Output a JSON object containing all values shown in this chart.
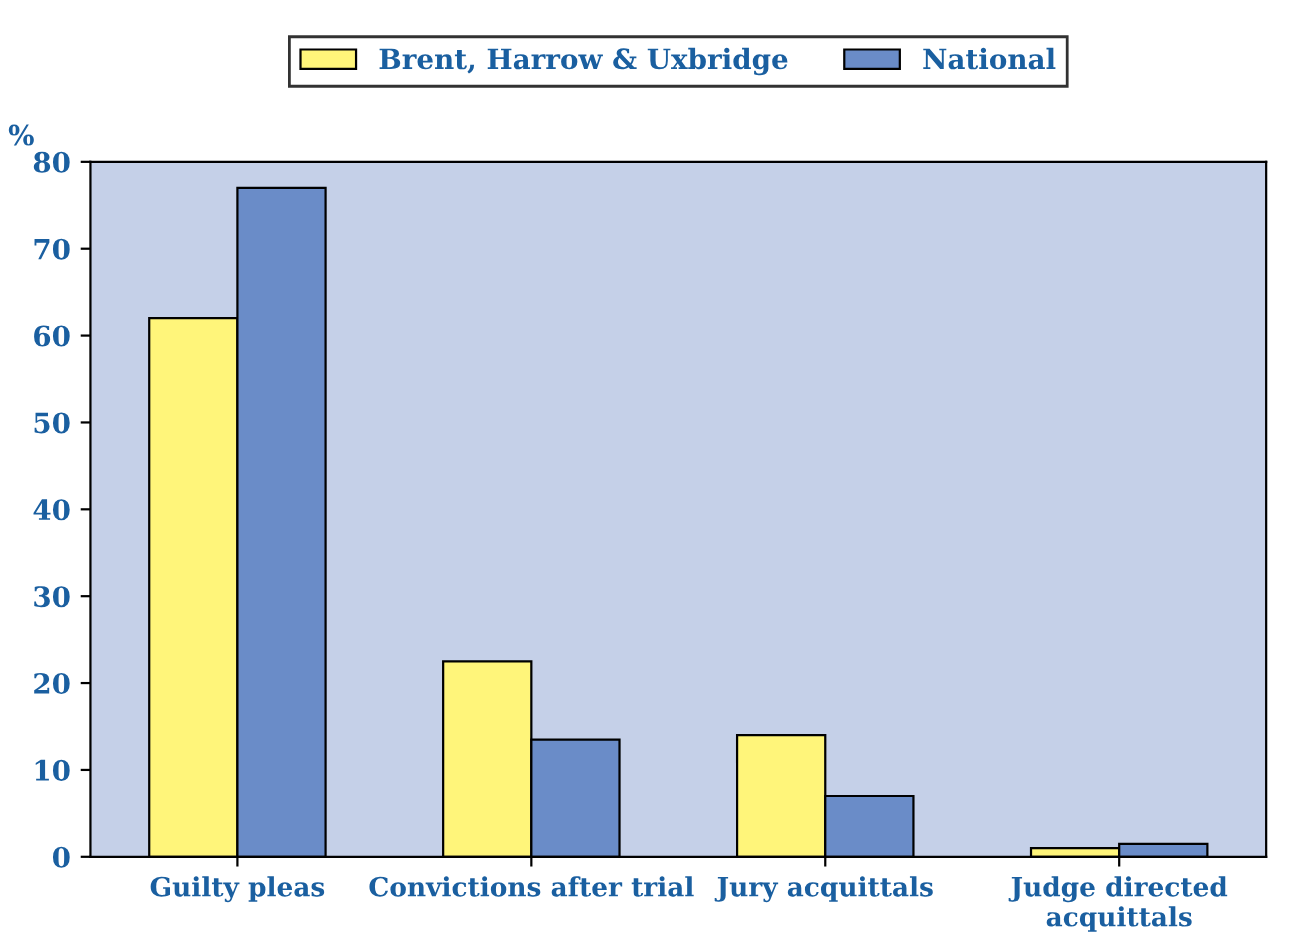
{
  "chart_data": {
    "type": "bar",
    "ylabel": "%",
    "categories": [
      "Guilty pleas",
      "Convictions after trial",
      "Jury acquittals",
      "Judge directed acquittals"
    ],
    "series": [
      {
        "name": "Brent, Harrow & Uxbridge",
        "color": "#fff57a",
        "values": [
          62,
          22.5,
          14,
          1
        ]
      },
      {
        "name": "National",
        "color": "#6a8cc8",
        "values": [
          77,
          13.5,
          7,
          1.5
        ]
      }
    ],
    "ylim": [
      0,
      80
    ],
    "yticks": [
      0,
      10,
      20,
      30,
      40,
      50,
      60,
      70,
      80
    ],
    "grid": false,
    "legend": "top"
  }
}
